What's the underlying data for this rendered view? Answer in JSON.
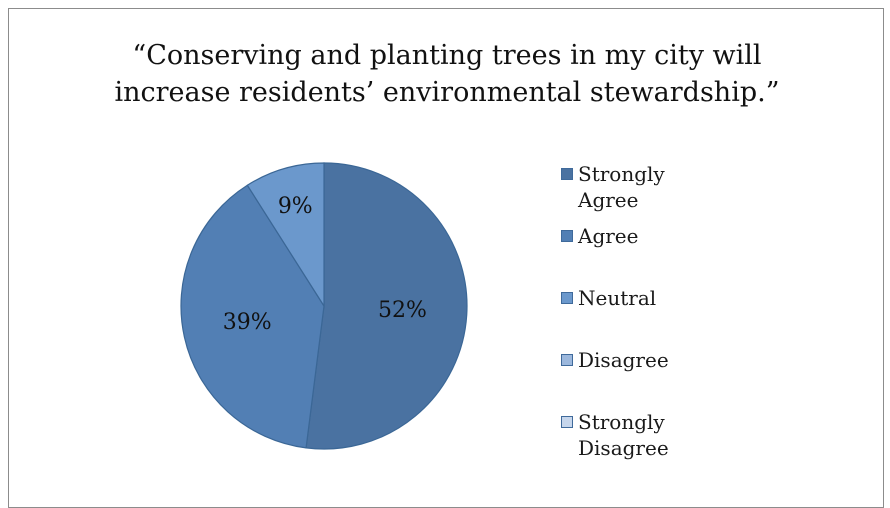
{
  "chart_data": {
    "type": "pie",
    "title_lines": [
      "“Conserving and planting trees in my city will",
      "increase residents’ environmental stewardship.”"
    ],
    "categories": [
      "Strongly Agree",
      "Agree",
      "Neutral",
      "Disagree",
      "Strongly Disagree"
    ],
    "values": [
      52,
      39,
      9,
      0,
      0
    ],
    "data_labels": [
      "52%",
      "39%",
      "9%",
      "",
      ""
    ],
    "colors": [
      "#4a72a1",
      "#527fb4",
      "#6b98cc",
      "#9cb8dd",
      "#c6d6ec"
    ],
    "legend_position": "right"
  }
}
